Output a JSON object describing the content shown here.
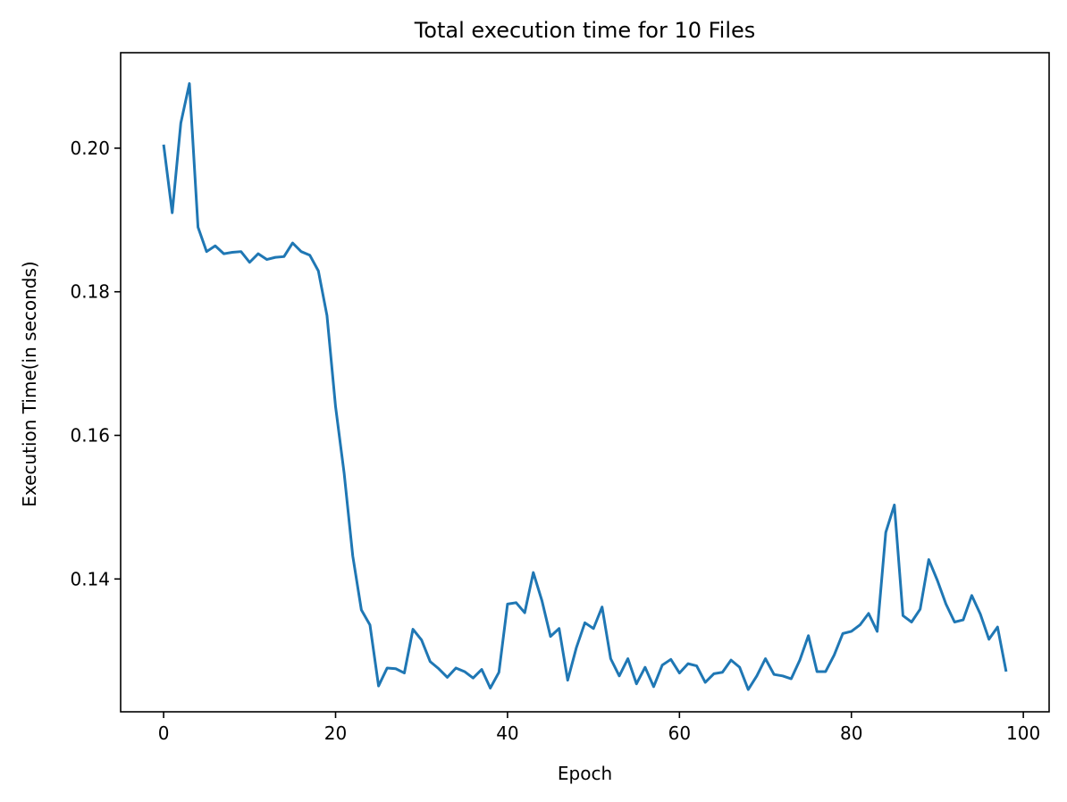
{
  "chart_data": {
    "type": "line",
    "title": "Total execution time for 10 Files",
    "xlabel": "Epoch",
    "ylabel": "Execution Time(in seconds)",
    "xlim": [
      -5,
      103
    ],
    "ylim": [
      0.1215,
      0.2133
    ],
    "xticks": [
      0,
      20,
      40,
      60,
      80,
      100
    ],
    "xtick_labels": [
      "0",
      "20",
      "40",
      "60",
      "80",
      "100"
    ],
    "yticks": [
      0.14,
      0.16,
      0.18,
      0.2
    ],
    "ytick_labels": [
      "0.14",
      "0.16",
      "0.18",
      "0.20"
    ],
    "grid": false,
    "line_color": "#1f77b4",
    "series": [
      {
        "x": [
          0,
          1,
          2,
          3,
          4,
          5,
          6,
          7,
          8,
          9,
          10,
          11,
          12,
          13,
          14,
          15,
          16,
          17,
          18,
          19,
          20,
          21,
          22,
          23,
          24,
          25,
          26,
          27,
          28,
          29,
          30,
          31,
          32,
          33,
          34,
          35,
          36,
          37,
          38,
          39,
          40,
          41,
          42,
          43,
          44,
          45,
          46,
          47,
          48,
          49,
          50,
          51,
          52,
          53,
          54,
          55,
          56,
          57,
          58,
          59,
          60,
          61,
          62,
          63,
          64,
          65,
          66,
          67,
          68,
          69,
          70,
          71,
          72,
          73,
          74,
          75,
          76,
          77,
          78,
          79,
          80,
          81,
          82,
          83,
          84,
          85,
          86,
          87,
          88,
          89,
          90,
          91,
          92,
          93,
          94,
          95,
          96,
          97,
          98
        ],
        "values": [
          0.2005,
          0.191,
          0.2035,
          0.209,
          0.189,
          0.1856,
          0.1864,
          0.1853,
          0.1855,
          0.1856,
          0.1841,
          0.1853,
          0.1845,
          0.1848,
          0.1849,
          0.1868,
          0.1856,
          0.1851,
          0.1829,
          0.1767,
          0.164,
          0.1547,
          0.1432,
          0.1357,
          0.1336,
          0.1251,
          0.1276,
          0.1275,
          0.1269,
          0.133,
          0.1315,
          0.1285,
          0.1275,
          0.1263,
          0.1276,
          0.1271,
          0.1262,
          0.1274,
          0.1248,
          0.127,
          0.1365,
          0.1367,
          0.1353,
          0.1409,
          0.137,
          0.132,
          0.1331,
          0.1259,
          0.1304,
          0.1339,
          0.1331,
          0.1361,
          0.1289,
          0.1265,
          0.1289,
          0.1254,
          0.1277,
          0.125,
          0.128,
          0.1288,
          0.1269,
          0.1282,
          0.1279,
          0.1256,
          0.1268,
          0.127,
          0.1287,
          0.1277,
          0.1246,
          0.1265,
          0.1289,
          0.1267,
          0.1265,
          0.1261,
          0.1287,
          0.1321,
          0.1271,
          0.1271,
          0.1294,
          0.1324,
          0.1327,
          0.1336,
          0.1352,
          0.1327,
          0.1465,
          0.1503,
          0.1349,
          0.134,
          0.1358,
          0.1427,
          0.1398,
          0.1365,
          0.134,
          0.1343,
          0.1377,
          0.1351,
          0.1316,
          0.1333,
          0.1271
        ]
      }
    ]
  }
}
